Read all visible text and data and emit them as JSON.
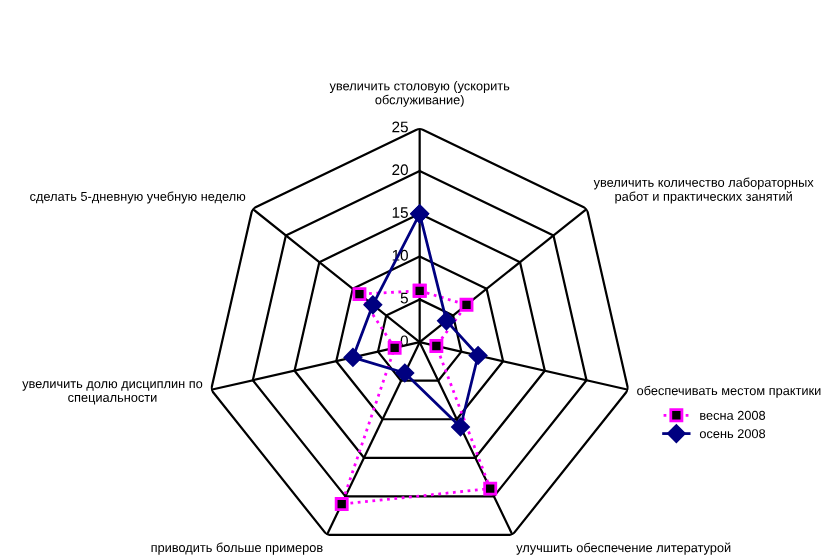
{
  "chart_data": {
    "type": "radar",
    "categories": [
      "увеличить столовую (ускорить\nобслуживание)",
      "увеличить количество лабораторных\nработ и практических занятий",
      "обеспечивать местом практики",
      "улучшить обеспечение литературой",
      "приводить больше примеров",
      "увеличить долю дисциплин по\nспециальности",
      "сделать 5-дневную учебную неделю"
    ],
    "series": [
      {
        "name": "весна 2008",
        "color": "#ff00ff",
        "marker": "square",
        "line_style": "dotted",
        "values": [
          6,
          7,
          2,
          19,
          21,
          3,
          9
        ]
      },
      {
        "name": "осень 2008",
        "color": "#000080",
        "marker": "diamond",
        "line_style": "solid",
        "values": [
          15,
          4,
          7,
          11,
          4,
          8,
          7
        ]
      }
    ],
    "ylim": [
      0,
      25
    ],
    "yticks": [
      0,
      5,
      10,
      15,
      20,
      25
    ],
    "grid": true,
    "legend": "right"
  }
}
